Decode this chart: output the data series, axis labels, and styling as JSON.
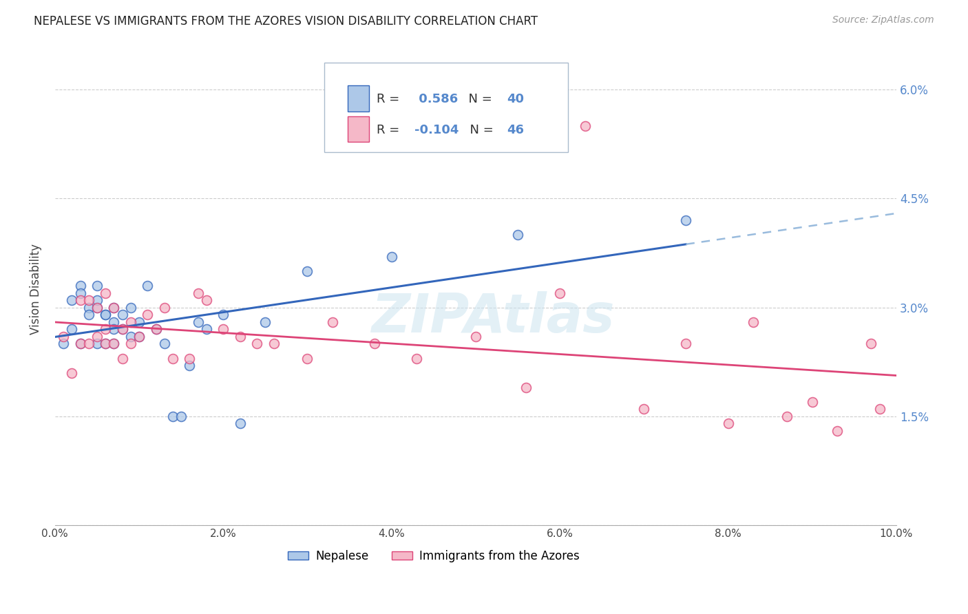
{
  "title": "NEPALESE VS IMMIGRANTS FROM THE AZORES VISION DISABILITY CORRELATION CHART",
  "source": "Source: ZipAtlas.com",
  "ylabel": "Vision Disability",
  "xlim": [
    0.0,
    0.1
  ],
  "ylim": [
    0.0,
    0.065
  ],
  "R1": 0.586,
  "N1": 40,
  "R2": -0.104,
  "N2": 46,
  "color_blue": "#adc8e8",
  "color_pink": "#f5b8c8",
  "line_blue": "#3366bb",
  "line_pink": "#dd4477",
  "line_ext_color": "#99bbdd",
  "watermark": "ZIPAtlas",
  "nepalese_x": [
    0.001,
    0.002,
    0.002,
    0.003,
    0.003,
    0.003,
    0.004,
    0.004,
    0.005,
    0.005,
    0.005,
    0.005,
    0.006,
    0.006,
    0.006,
    0.007,
    0.007,
    0.007,
    0.007,
    0.008,
    0.008,
    0.009,
    0.009,
    0.01,
    0.01,
    0.011,
    0.012,
    0.013,
    0.014,
    0.015,
    0.016,
    0.017,
    0.018,
    0.02,
    0.022,
    0.025,
    0.03,
    0.04,
    0.055,
    0.075
  ],
  "nepalese_y": [
    0.025,
    0.031,
    0.027,
    0.033,
    0.032,
    0.025,
    0.03,
    0.029,
    0.03,
    0.025,
    0.033,
    0.031,
    0.029,
    0.029,
    0.025,
    0.03,
    0.028,
    0.025,
    0.027,
    0.029,
    0.027,
    0.03,
    0.026,
    0.026,
    0.028,
    0.033,
    0.027,
    0.025,
    0.015,
    0.015,
    0.022,
    0.028,
    0.027,
    0.029,
    0.014,
    0.028,
    0.035,
    0.037,
    0.04,
    0.042
  ],
  "azores_x": [
    0.001,
    0.002,
    0.003,
    0.003,
    0.004,
    0.004,
    0.005,
    0.005,
    0.006,
    0.006,
    0.006,
    0.007,
    0.007,
    0.008,
    0.008,
    0.009,
    0.009,
    0.01,
    0.011,
    0.012,
    0.013,
    0.014,
    0.016,
    0.017,
    0.018,
    0.02,
    0.022,
    0.024,
    0.026,
    0.03,
    0.033,
    0.038,
    0.043,
    0.05,
    0.056,
    0.06,
    0.063,
    0.07,
    0.075,
    0.08,
    0.083,
    0.087,
    0.09,
    0.093,
    0.097,
    0.098
  ],
  "azores_y": [
    0.026,
    0.021,
    0.025,
    0.031,
    0.031,
    0.025,
    0.03,
    0.026,
    0.027,
    0.032,
    0.025,
    0.03,
    0.025,
    0.027,
    0.023,
    0.028,
    0.025,
    0.026,
    0.029,
    0.027,
    0.03,
    0.023,
    0.023,
    0.032,
    0.031,
    0.027,
    0.026,
    0.025,
    0.025,
    0.023,
    0.028,
    0.025,
    0.023,
    0.026,
    0.019,
    0.032,
    0.055,
    0.016,
    0.025,
    0.014,
    0.028,
    0.015,
    0.017,
    0.013,
    0.025,
    0.016
  ]
}
